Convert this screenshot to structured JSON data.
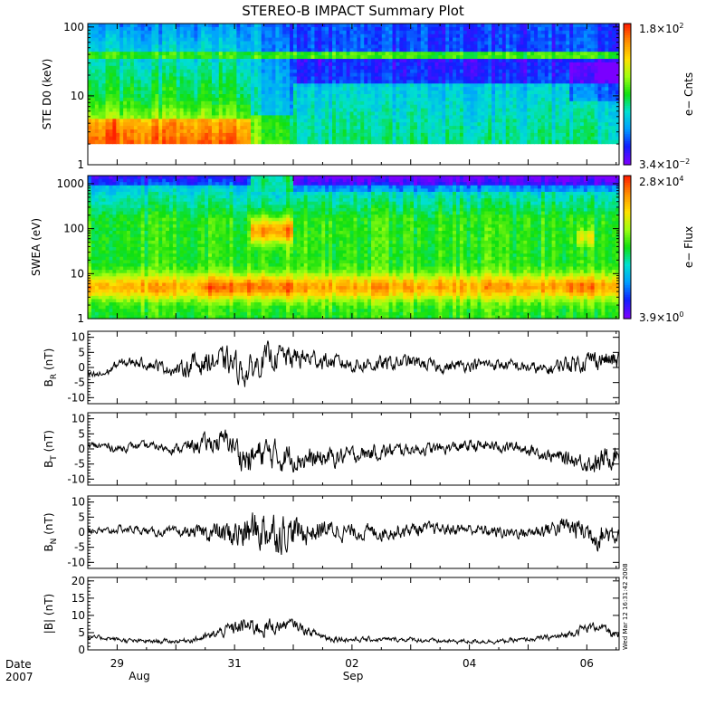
{
  "title": "STEREO-B IMPACT Summary Plot",
  "timestamp": "Wed Mar 12 16:31:42 2008",
  "colors": {
    "background": "#ffffff",
    "line": "#000000",
    "colormap": [
      "#7a00ff",
      "#1020ff",
      "#00a0ff",
      "#00e0d0",
      "#10e010",
      "#a0ff10",
      "#ffe000",
      "#ff9000",
      "#ff2000"
    ]
  },
  "time_axis": {
    "tick_labels": [
      "29",
      "31",
      "02",
      "04",
      "06"
    ],
    "month_labels": [
      "Aug",
      "Sep"
    ],
    "corner_label": "Date",
    "year": "2007"
  },
  "chart_data": [
    {
      "type": "heatmap",
      "panel": "STE D0",
      "ylabel": "STE D0 (keV)",
      "yscale": "log",
      "ylim": [
        1,
        100
      ],
      "yticks": [
        "100",
        "10",
        "1"
      ],
      "colorbar": {
        "label": "e− Cnts",
        "max_base": "1.8×10",
        "max_exp": "2",
        "min_base": "3.4×10",
        "min_exp": "−2"
      },
      "x_days": [
        28.5,
        29,
        29.5,
        30,
        30.5,
        31,
        31.25,
        31.5,
        32,
        32.5,
        33,
        34,
        35,
        36,
        37,
        37.5
      ],
      "energy_keV": [
        2,
        2.5,
        3,
        4,
        5,
        7,
        10,
        14,
        20,
        28,
        36,
        40,
        50,
        70,
        100
      ],
      "level_summary": "High counts (red) below 4 keV until 31 Aug; green band near 36 keV; low counts (blue) above 40 keV and after 02 Sep"
    },
    {
      "type": "heatmap",
      "panel": "SWEA",
      "ylabel": "SWEA (eV)",
      "yscale": "log",
      "ylim": [
        1,
        1500
      ],
      "yticks": [
        "1000",
        "100",
        "10",
        "1"
      ],
      "colorbar": {
        "label": "e− Flux",
        "max_base": "2.8×10",
        "max_exp": "4",
        "min_base": "3.9×10",
        "min_exp": "0"
      },
      "x_days": [
        28.5,
        29,
        29.5,
        30,
        30.5,
        31,
        31.25,
        31.5,
        31.75,
        32,
        32.5,
        33,
        34,
        35,
        36,
        36.5,
        37,
        37.5
      ],
      "energy_eV": [
        1.2,
        2,
        3,
        5,
        7,
        10,
        15,
        25,
        40,
        60,
        100,
        150,
        250,
        400,
        700,
        1000,
        1500
      ],
      "level_summary": "Flux peak (red/orange) at 3-10 eV; enhanced 40-150 eV flux on 31 Aug-01 Sep; blue above 1000 eV"
    },
    {
      "type": "line",
      "panel": "B_R",
      "ylabel": "B_R (nT)",
      "ylim": [
        -12,
        12
      ],
      "yticks": [
        10,
        5,
        0,
        -5,
        -10
      ],
      "x_days": [
        28.5,
        28.8,
        29.0,
        29.3,
        29.6,
        30.0,
        30.3,
        30.6,
        30.9,
        31.2,
        31.5,
        31.8,
        32.0,
        32.3,
        32.6,
        33.0,
        33.5,
        34.0,
        34.5,
        35.0,
        35.5,
        36.0,
        36.3,
        36.6,
        36.9,
        37.2,
        37.5
      ],
      "values": [
        -3,
        -2,
        1,
        2,
        1,
        -1,
        1,
        2,
        2,
        -2,
        3,
        4,
        3,
        3,
        2,
        1,
        1,
        2,
        0,
        1,
        1,
        0,
        -1,
        1,
        2,
        3,
        2
      ],
      "noise_amplitude": [
        1,
        1,
        1.2,
        1.2,
        1.5,
        1.5,
        3,
        3,
        3.5,
        3.5,
        3.5,
        3,
        3,
        2.5,
        2,
        2,
        2,
        1.8,
        1.5,
        1.5,
        1.5,
        1.5,
        1.5,
        2,
        2.5,
        2.5,
        2.5
      ]
    },
    {
      "type": "line",
      "panel": "B_T",
      "ylabel": "B_T (nT)",
      "ylim": [
        -12,
        12
      ],
      "yticks": [
        10,
        5,
        0,
        -5,
        -10
      ],
      "x_days": [
        28.5,
        28.8,
        29.0,
        29.3,
        29.6,
        30.0,
        30.3,
        30.6,
        30.9,
        31.2,
        31.5,
        31.8,
        32.0,
        32.3,
        32.6,
        33.0,
        33.5,
        34.0,
        34.5,
        35.0,
        35.5,
        36.0,
        36.3,
        36.6,
        36.9,
        37.2,
        37.5
      ],
      "values": [
        1,
        1,
        0,
        1,
        1,
        0,
        1,
        2,
        3,
        -4,
        -1,
        -3,
        -2,
        -4,
        -3,
        -2,
        -1,
        0,
        0,
        1,
        1,
        0,
        -2,
        -3,
        -4,
        -5,
        -1
      ],
      "noise_amplitude": [
        1,
        1,
        1,
        1,
        1,
        1.2,
        2,
        2.5,
        3,
        4,
        4,
        3.5,
        3.5,
        3,
        2.5,
        2,
        2,
        1.5,
        1.5,
        1.5,
        1.5,
        1.5,
        1.5,
        2,
        2,
        3,
        3
      ]
    },
    {
      "type": "line",
      "panel": "B_N",
      "ylabel": "B_N (nT)",
      "ylim": [
        -12,
        12
      ],
      "yticks": [
        10,
        5,
        0,
        -5,
        -10
      ],
      "x_days": [
        28.5,
        28.8,
        29.0,
        29.3,
        29.6,
        30.0,
        30.3,
        30.6,
        30.9,
        31.2,
        31.5,
        31.8,
        32.0,
        32.3,
        32.6,
        33.0,
        33.5,
        34.0,
        34.5,
        35.0,
        35.5,
        36.0,
        36.3,
        36.6,
        36.9,
        37.2,
        37.5
      ],
      "values": [
        1,
        0,
        1,
        1,
        0,
        0,
        0,
        0,
        -1,
        0,
        1,
        0,
        0,
        0,
        1,
        0,
        0,
        1,
        1,
        1,
        0,
        0,
        1,
        2,
        1,
        -1,
        0
      ],
      "noise_amplitude": [
        1,
        1,
        1,
        1,
        1,
        1.2,
        1.5,
        2.5,
        3.5,
        5,
        5.5,
        5,
        4,
        3,
        2.5,
        2,
        2,
        1.8,
        1.5,
        1.5,
        1.5,
        1.5,
        2,
        2.5,
        3,
        3.5,
        3
      ]
    },
    {
      "type": "line",
      "panel": "|B|",
      "ylabel": "|B| (nT)",
      "ylim": [
        0,
        21
      ],
      "yticks": [
        20,
        15,
        10,
        5,
        0
      ],
      "x_days": [
        28.5,
        28.8,
        29.0,
        29.3,
        29.6,
        30.0,
        30.3,
        30.6,
        30.9,
        31.2,
        31.5,
        31.8,
        32.0,
        32.3,
        32.6,
        33.0,
        33.5,
        34.0,
        34.5,
        35.0,
        35.5,
        36.0,
        36.3,
        36.6,
        36.9,
        37.2,
        37.5
      ],
      "values": [
        3.5,
        3.5,
        3,
        2.5,
        2.5,
        2.5,
        3,
        4,
        6,
        7,
        6.5,
        7,
        7.5,
        5,
        3.5,
        3,
        3,
        3,
        2.5,
        2.5,
        2.5,
        3,
        3.5,
        4,
        6,
        7,
        4
      ],
      "noise_amplitude": [
        0.5,
        0.5,
        0.5,
        0.5,
        0.5,
        0.5,
        0.6,
        1,
        1.5,
        2,
        2,
        1.5,
        1.2,
        1,
        0.8,
        0.6,
        0.5,
        0.5,
        0.5,
        0.5,
        0.5,
        0.5,
        0.6,
        0.8,
        1,
        1,
        1
      ]
    }
  ]
}
